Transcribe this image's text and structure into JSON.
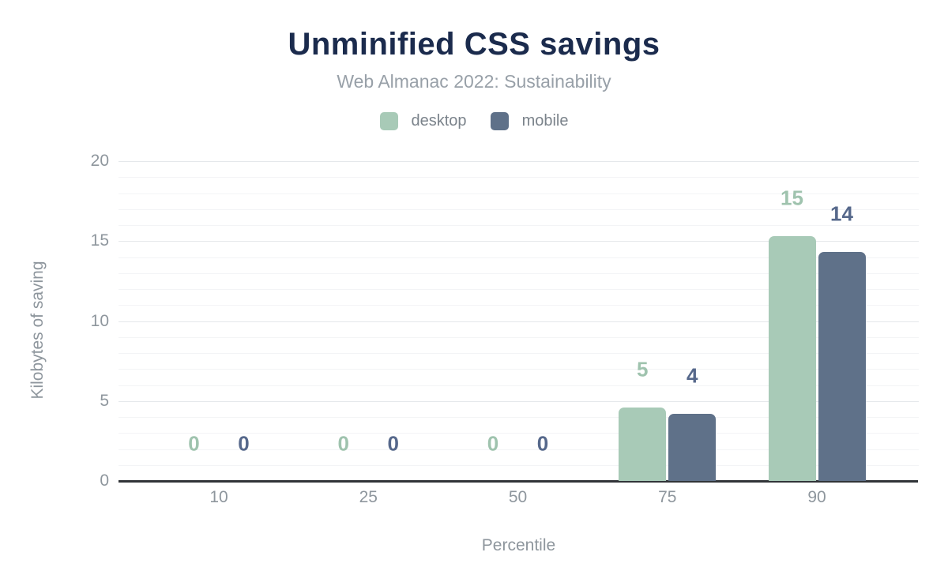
{
  "header": {
    "title": "Unminified CSS savings",
    "subtitle": "Web Almanac 2022: Sustainability"
  },
  "legend": {
    "items": [
      {
        "label": "desktop",
        "color": "#a8cab7"
      },
      {
        "label": "mobile",
        "color": "#5f7189"
      }
    ]
  },
  "axes": {
    "y": {
      "title": "Kilobytes of saving",
      "ticks": [
        0,
        5,
        10,
        15,
        20
      ],
      "max": 20,
      "minor_interval": 1,
      "major_interval": 5
    },
    "x": {
      "title": "Percentile",
      "ticks": [
        "10",
        "25",
        "50",
        "75",
        "90"
      ]
    }
  },
  "chart_data": {
    "type": "bar",
    "title": "Unminified CSS savings",
    "subtitle": "Web Almanac 2022: Sustainability",
    "categories": [
      "10",
      "25",
      "50",
      "75",
      "90"
    ],
    "series": [
      {
        "name": "desktop",
        "color": "#a8cab7",
        "label_color": "#9fc3ae",
        "values": [
          0,
          0,
          0,
          4.6,
          15.3
        ],
        "labels": [
          "0",
          "0",
          "0",
          "5",
          "15"
        ]
      },
      {
        "name": "mobile",
        "color": "#5f7189",
        "label_color": "#56688b",
        "values": [
          0,
          0,
          0,
          4.2,
          14.3
        ],
        "labels": [
          "0",
          "0",
          "0",
          "4",
          "14"
        ]
      }
    ],
    "xlabel": "Percentile",
    "ylabel": "Kilobytes of saving",
    "ylim": [
      0,
      20
    ],
    "grid": "horizontal; minor every 1, major every 5",
    "legend_position": "top-center"
  },
  "colors": {
    "title": "#1b2b4d",
    "subtitle": "#98a0a8",
    "axis_text": "#8e969d",
    "axis_line": "#313438",
    "grid_minor": "#f3f4f6",
    "grid_major": "#e5e8eb",
    "background": "#ffffff"
  }
}
